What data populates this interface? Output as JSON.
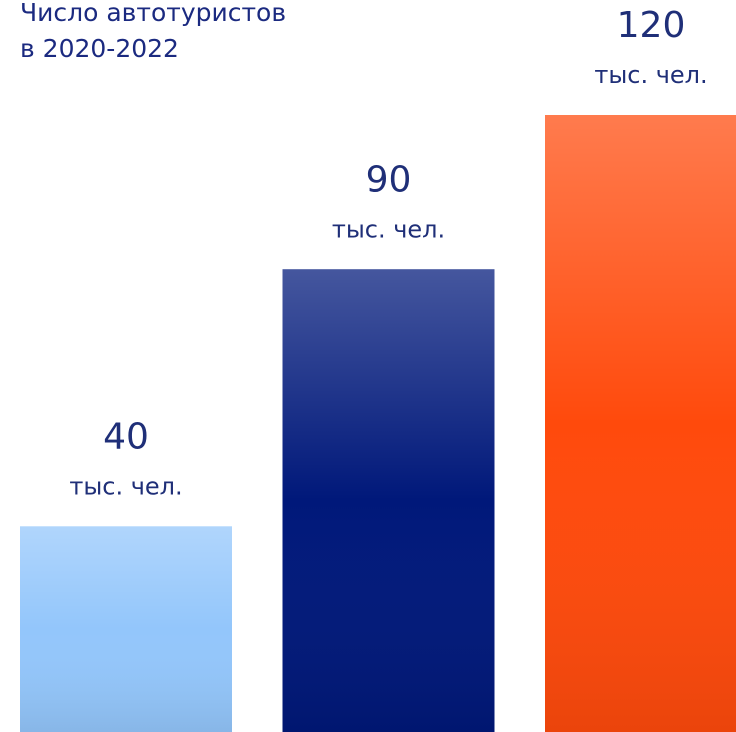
{
  "chart_data": {
    "type": "bar",
    "title": [
      "Число автотуристов",
      "в 2020-2022"
    ],
    "categories": [
      null,
      null,
      null
    ],
    "values": [
      40,
      90,
      120
    ],
    "unit": "тыс. чел.",
    "colors": [
      "#93c6fb",
      "#00187a",
      "#ff4a0c"
    ],
    "ylim": [
      0,
      120
    ]
  }
}
